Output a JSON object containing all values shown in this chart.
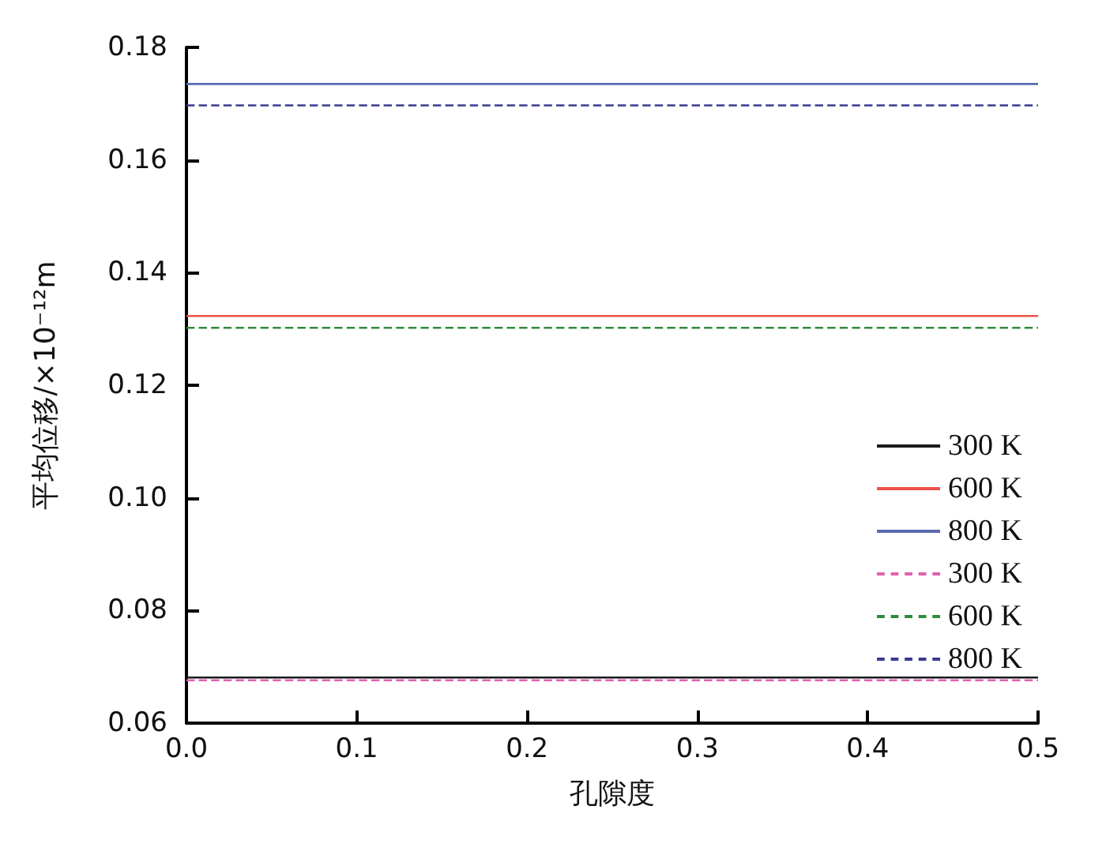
{
  "chart_data": {
    "type": "line",
    "xlabel": "孔隙度",
    "ylabel": "平均位移/×10⁻¹²m",
    "x": [
      0,
      0.5
    ],
    "xlim": [
      0,
      0.5
    ],
    "xticks": [
      {
        "value": 0,
        "label": "0.0"
      },
      0.1,
      0.2,
      0.3,
      0.4,
      0.5
    ],
    "ylim": [
      0.06,
      0.18
    ],
    "yticks": [
      0.06,
      0.08,
      {
        "value": 0.1,
        "label": "0.10"
      },
      0.12,
      0.14,
      0.16,
      0.18
    ],
    "grid": false,
    "legend": "right",
    "marker": "none",
    "series": [
      {
        "name": "300 K",
        "color": "#1a1a1a",
        "line_style": "solid",
        "values": [
          0.0681,
          0.0681
        ]
      },
      {
        "name": "600 K",
        "color": "#f0504a",
        "line_style": "solid",
        "values": [
          0.1323,
          0.1323
        ]
      },
      {
        "name": "800 K",
        "color": "#5a6ab0",
        "line_style": "solid",
        "values": [
          0.1735,
          0.1735
        ]
      },
      {
        "name": "300 K",
        "color": "#e060b0",
        "line_style": "dashed",
        "values": [
          0.0676,
          0.0676
        ]
      },
      {
        "name": "600 K",
        "color": "#2e8b3a",
        "line_style": "dashed",
        "values": [
          0.1302,
          0.1302
        ]
      },
      {
        "name": "800 K",
        "color": "#3a3a90",
        "line_style": "dashed",
        "values": [
          0.1697,
          0.1697
        ]
      }
    ]
  }
}
